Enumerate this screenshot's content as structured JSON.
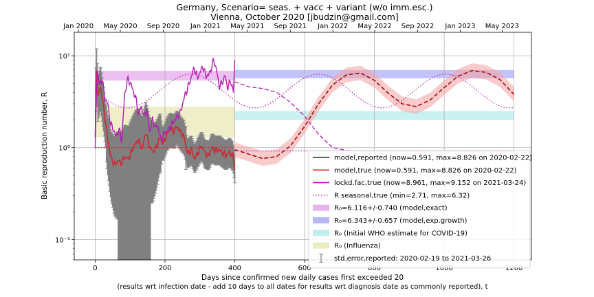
{
  "chart_data": {
    "type": "line",
    "title_line1": "Germany, Scenario= seas. + vacc + variant (w/o imm.esc.)",
    "title_line2": "Vienna, October 2020 [jbudzin@gmail.com]",
    "xlabel_line1": "Days since confirmed new daily cases first exceeded 20",
    "xlabel_line2": "(results wrt infection date - add 10 days to all dates for results wrt diagnosis date as commonly reported), t",
    "ylabel": "Basic reproduction number, R",
    "xlim": [
      -60,
      1250
    ],
    "ylim": [
      0.06,
      18
    ],
    "yscale": "log",
    "grid": true,
    "legend_position": "lower-right",
    "x_ticks": [
      0,
      200,
      400,
      600,
      800,
      1000,
      1200
    ],
    "x_tick_labels": [
      "0",
      "200",
      "400",
      "600",
      "800",
      "1000",
      "1200"
    ],
    "y_ticks": [
      0.1,
      1,
      10
    ],
    "y_tick_labels": [
      "10⁻¹",
      "10⁰",
      "10¹"
    ],
    "top_axis_ticks": [
      {
        "day": -48,
        "label": "Jan 2020"
      },
      {
        "day": 72,
        "label": "May 2020"
      },
      {
        "day": 195,
        "label": "Sep 2020"
      },
      {
        "day": 316,
        "label": "Jan 2021"
      },
      {
        "day": 436,
        "label": "May 2021"
      },
      {
        "day": 559,
        "label": "Sep 2021"
      },
      {
        "day": 681,
        "label": "Jan 2022"
      },
      {
        "day": 801,
        "label": "May 2022"
      },
      {
        "day": 924,
        "label": "Sep 2022"
      },
      {
        "day": 1046,
        "label": "Jan 2023"
      },
      {
        "day": 1166,
        "label": "May 2023"
      }
    ],
    "bands": [
      {
        "name": "R0=6.116+/-0.740 (model,exact)",
        "x": [
          0,
          400
        ],
        "y": [
          5.376,
          6.856
        ],
        "color": "#e8b4ec"
      },
      {
        "name": "R0=6.343+/-0.657 (model,exp.growth)",
        "x": [
          400,
          1200
        ],
        "y": [
          5.686,
          7.0
        ],
        "color": "#b8b8f8"
      },
      {
        "name": "R0 (Initial WHO estimate for COVID-19)",
        "x": [
          400,
          1200
        ],
        "y": [
          2.0,
          2.5
        ],
        "color": "#bfeeee"
      },
      {
        "name": "R0 (Influenza)",
        "x": [
          0,
          400
        ],
        "y": [
          1.3,
          2.8
        ],
        "color": "#ecebbf"
      }
    ],
    "seasonal_params": {
      "min": 2.71,
      "max": 6.32,
      "peak_day": 275,
      "period": 365
    },
    "series": [
      {
        "name": "model,reported (now=0.591, max=8.826 on 2020-02-22)",
        "color": "#1f1fbf",
        "x": [
          0,
          3,
          8,
          15,
          25,
          35,
          45,
          55,
          65,
          75,
          85,
          95,
          105,
          115,
          125,
          135,
          145,
          155,
          165,
          175,
          185,
          195,
          205,
          215,
          225,
          235,
          245,
          255,
          265,
          275,
          285,
          295,
          305,
          315,
          325,
          335,
          345,
          355,
          365,
          375,
          385,
          395,
          400
        ],
        "y": [
          1.2,
          8.8,
          3.5,
          4.8,
          2.6,
          1.3,
          0.78,
          0.65,
          0.72,
          0.68,
          0.8,
          0.75,
          0.92,
          1.1,
          1.2,
          0.95,
          1.5,
          1.05,
          0.9,
          1.0,
          1.3,
          1.1,
          1.4,
          1.6,
          1.5,
          1.7,
          1.45,
          1.3,
          0.85,
          0.95,
          0.75,
          0.9,
          1.05,
          0.85,
          0.82,
          1.0,
          0.92,
          0.95,
          0.88,
          0.82,
          0.9,
          0.8,
          0.591
        ]
      },
      {
        "name": "model,true (now=0.591, max=8.826 on 2020-02-22)",
        "color": "#d62728",
        "x": [
          0,
          3,
          8,
          15,
          25,
          35,
          45,
          55,
          65,
          75,
          85,
          95,
          105,
          115,
          125,
          135,
          145,
          155,
          165,
          175,
          185,
          195,
          205,
          215,
          225,
          235,
          245,
          255,
          265,
          275,
          285,
          295,
          305,
          315,
          325,
          335,
          345,
          355,
          365,
          375,
          385,
          395,
          400
        ],
        "y": [
          1.2,
          8.8,
          3.5,
          4.8,
          2.6,
          1.3,
          0.78,
          0.65,
          0.72,
          0.68,
          0.8,
          0.75,
          0.92,
          1.1,
          1.2,
          0.95,
          1.5,
          1.05,
          0.9,
          1.0,
          1.3,
          1.1,
          1.4,
          1.6,
          1.5,
          1.7,
          1.45,
          1.3,
          0.85,
          0.95,
          0.75,
          0.9,
          1.05,
          0.85,
          0.82,
          1.0,
          0.92,
          0.95,
          0.88,
          0.82,
          0.9,
          0.8,
          0.591
        ]
      },
      {
        "name": "lockd.fac,true (now=8.961, max=9.152 on 2021-03-24)",
        "color": "#b31bb3",
        "x": [
          0,
          5,
          12,
          20,
          28,
          36,
          44,
          52,
          60,
          68,
          76,
          84,
          92,
          100,
          108,
          116,
          124,
          132,
          140,
          148,
          156,
          164,
          172,
          180,
          188,
          196,
          204,
          212,
          220,
          228,
          236,
          244,
          252,
          260,
          268,
          276,
          284,
          292,
          300,
          308,
          316,
          324,
          332,
          340,
          348,
          356,
          364,
          372,
          380,
          388,
          396,
          400
        ],
        "y": [
          0.9,
          7.5,
          4.8,
          5.6,
          3.4,
          3.0,
          1.8,
          1.6,
          1.3,
          1.6,
          1.2,
          3.6,
          5.5,
          5.2,
          4.2,
          3.5,
          2.3,
          2.8,
          2.2,
          2.6,
          1.5,
          2.0,
          1.7,
          1.7,
          1.2,
          1.4,
          1.5,
          1.6,
          1.8,
          2.0,
          2.2,
          2.4,
          3.2,
          4.0,
          4.8,
          6.0,
          7.5,
          5.8,
          6.4,
          7.8,
          6.2,
          6.0,
          7.2,
          9.1,
          6.8,
          4.6,
          5.2,
          6.0,
          4.5,
          5.4,
          4.0,
          8.96
        ]
      },
      {
        "name": "R seasonal,true (min=2.71, max=6.32)",
        "color": "#b31bb3",
        "dashed": true
      }
    ],
    "projection": {
      "x": [
        400,
        440,
        480,
        520,
        560,
        600,
        640,
        680,
        720,
        760,
        800,
        840,
        880,
        920,
        960,
        1000,
        1040,
        1080,
        1120,
        1160,
        1200
      ],
      "y": [
        0.95,
        0.85,
        0.76,
        0.8,
        1.05,
        1.7,
        3.0,
        4.8,
        6.2,
        6.5,
        5.4,
        3.9,
        3.0,
        2.8,
        3.3,
        4.5,
        6.0,
        6.9,
        6.6,
        5.5,
        3.8
      ],
      "band_rel": 0.2,
      "color": "#a00000"
    },
    "lockdown_projection": {
      "x": [
        400,
        440,
        480,
        520,
        560,
        600,
        640,
        680,
        720,
        760,
        800,
        1200
      ],
      "y": [
        5.2,
        4.6,
        4.4,
        4.0,
        3.1,
        2.2,
        1.4,
        1.0,
        0.93,
        0.92,
        0.92,
        0.92
      ]
    },
    "stderr_note": "std.error,reported: 2020-02-19 to 2021-03-26",
    "legend": [
      {
        "label": "model,reported (now=0.591, max=8.826 on 2020-02-22)",
        "kind": "line",
        "color": "#1f1fbf"
      },
      {
        "label": "model,true (now=0.591, max=8.826 on 2020-02-22)",
        "kind": "line",
        "color": "#d62728"
      },
      {
        "label": "lockd.fac,true (now=8.961, max=9.152 on 2021-03-24)",
        "kind": "line",
        "color": "#b31bb3"
      },
      {
        "label": "R seasonal,true (min=2.71, max=6.32)",
        "kind": "dotted",
        "color": "#b31bb3"
      },
      {
        "label": "R₀=6.116+/-0.740 (model,exact)",
        "kind": "patch",
        "color": "#e8b4ec"
      },
      {
        "label": "R₀=6.343+/-0.657 (model,exp.growth)",
        "kind": "patch",
        "color": "#b8b8f8"
      },
      {
        "label": "R₀ (Initial WHO estimate for COVID-19)",
        "kind": "patch",
        "color": "#bfeeee"
      },
      {
        "label": "R₀ (Influenza)",
        "kind": "patch",
        "color": "#ecebbf"
      },
      {
        "label": "std.error,reported: 2020-02-19 to 2021-03-26",
        "kind": "errorbar",
        "color": "#7f7f7f"
      }
    ]
  }
}
